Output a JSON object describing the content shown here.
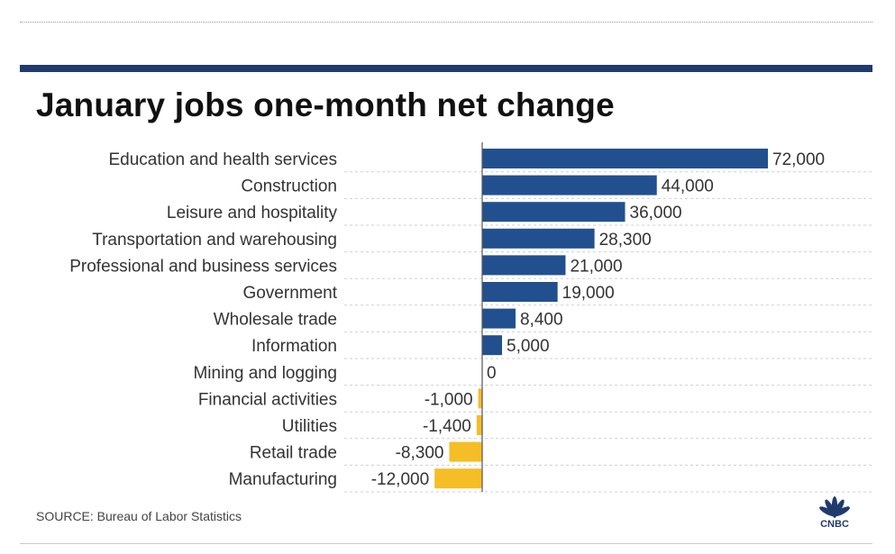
{
  "chart_data": {
    "type": "bar",
    "orientation": "horizontal",
    "title": "January jobs one-month net change",
    "categories": [
      "Education and health services",
      "Construction",
      "Leisure and hospitality",
      "Transportation and warehousing",
      "Professional and business services",
      "Government",
      "Wholesale trade",
      "Information",
      "Mining and logging",
      "Financial activities",
      "Utilities",
      "Retail trade",
      "Manufacturing"
    ],
    "values": [
      72000,
      44000,
      36000,
      28300,
      21000,
      19000,
      8400,
      5000,
      0,
      -1000,
      -1400,
      -8300,
      -12000
    ],
    "value_labels": [
      "72,000",
      "44,000",
      "36,000",
      "28,300",
      "21,000",
      "19,000",
      "8,400",
      "5,000",
      "0",
      "-1,000",
      "-1,400",
      "-8,300",
      "-12,000"
    ],
    "xlabel": "",
    "ylabel": "",
    "xlim": [
      -34500,
      72000
    ],
    "grid": "dashed horizontal row separators",
    "colors": {
      "positive": "#22508f",
      "negative": "#f5bd26",
      "baseline": "#555555",
      "accent_bar": "#1f3b6e"
    }
  },
  "source": "SOURCE: Bureau of Labor Statistics",
  "logo": {
    "name": "cnbc-peacock-logo",
    "wordmark": "CNBC"
  }
}
